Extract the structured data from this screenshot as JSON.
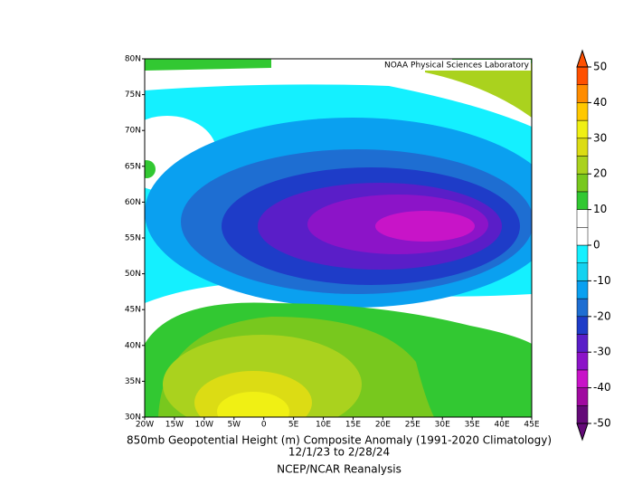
{
  "credit": "NOAA Physical Sciences Laboratory",
  "lat_ticks": [
    {
      "value": 80,
      "label": "80N"
    },
    {
      "value": 75,
      "label": "75N"
    },
    {
      "value": 70,
      "label": "70N"
    },
    {
      "value": 65,
      "label": "65N"
    },
    {
      "value": 60,
      "label": "60N"
    },
    {
      "value": 55,
      "label": "55N"
    },
    {
      "value": 50,
      "label": "50N"
    },
    {
      "value": 45,
      "label": "45N"
    },
    {
      "value": 40,
      "label": "40N"
    },
    {
      "value": 35,
      "label": "35N"
    },
    {
      "value": 30,
      "label": "30N"
    }
  ],
  "lon_ticks": [
    {
      "value": -20,
      "label": "20W"
    },
    {
      "value": -15,
      "label": "15W"
    },
    {
      "value": -10,
      "label": "10W"
    },
    {
      "value": -5,
      "label": "5W"
    },
    {
      "value": 0,
      "label": "0"
    },
    {
      "value": 5,
      "label": "5E"
    },
    {
      "value": 10,
      "label": "10E"
    },
    {
      "value": 15,
      "label": "15E"
    },
    {
      "value": 20,
      "label": "20E"
    },
    {
      "value": 25,
      "label": "25E"
    },
    {
      "value": 30,
      "label": "30E"
    },
    {
      "value": 35,
      "label": "35E"
    },
    {
      "value": 40,
      "label": "40E"
    },
    {
      "value": 45,
      "label": "45E"
    }
  ],
  "colorbar": {
    "lim": [
      -50,
      50
    ],
    "ticks": [
      50,
      40,
      30,
      20,
      10,
      0,
      -10,
      -20,
      -30,
      -40,
      -50
    ],
    "colors": [
      "#640a78",
      "#a00aa0",
      "#c814c8",
      "#8c14c8",
      "#5a1ec8",
      "#1e3cc8",
      "#1e6ed2",
      "#0aa0f0",
      "#14d2f0",
      "#14f0ff",
      "#ffffff",
      "#ffffff",
      "#32c832",
      "#78c81e",
      "#aad21e",
      "#dcdc14",
      "#f0f014",
      "#ffc800",
      "#ff8c00",
      "#ff5000"
    ]
  },
  "title_lines": [
    "850mb Geopotential Height (m) Composite Anomaly (1991-2020 Climatology)",
    "12/1/23  to 2/28/24"
  ],
  "source": "NCEP/NCAR Reanalysis"
}
